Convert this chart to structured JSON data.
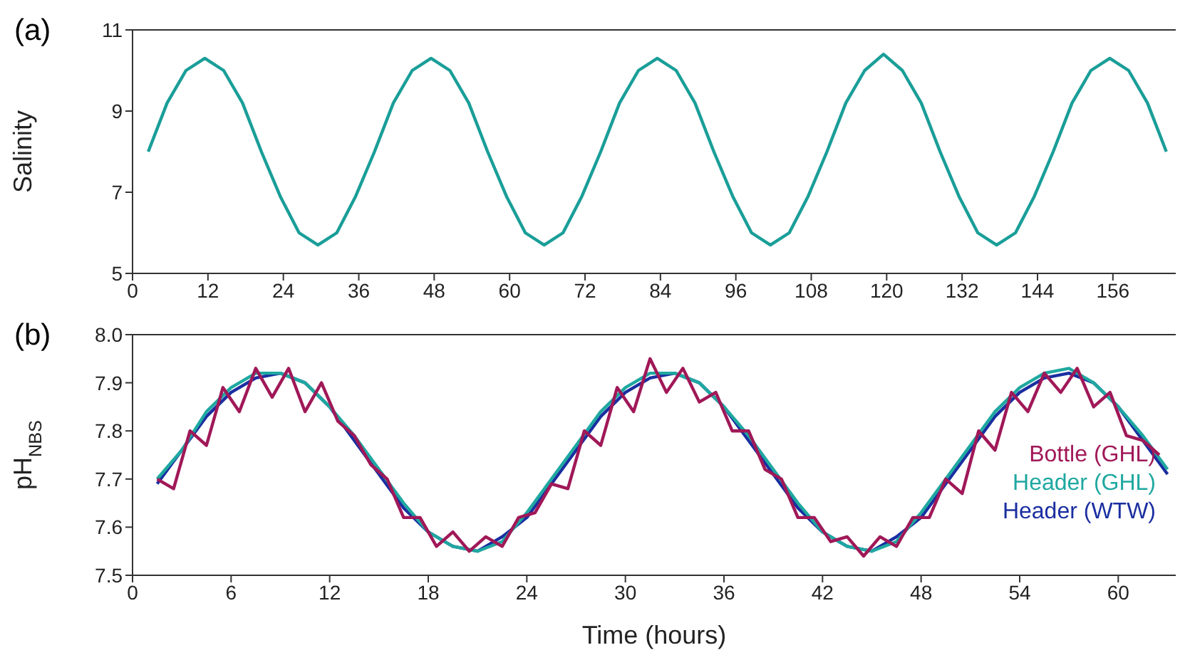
{
  "chart_data": [
    {
      "type": "line",
      "annotations": [
        "(a)"
      ],
      "ylabel": "Salinity",
      "xlim": [
        0,
        166
      ],
      "xticks": [
        0,
        12,
        24,
        36,
        48,
        60,
        72,
        84,
        96,
        108,
        120,
        132,
        144,
        156
      ],
      "ylim": [
        5,
        11
      ],
      "yticks": [
        5,
        7,
        9,
        11
      ],
      "legend": false,
      "marker": "none",
      "line_style": "solid",
      "series": [
        {
          "color": "#1a9e98",
          "x": [
            2.5,
            5.5,
            8.5,
            11.5,
            14.5,
            17.5,
            20.5,
            23.5,
            26.5,
            29.5,
            32.5,
            35.5,
            38.5,
            41.5,
            44.5,
            47.5,
            50.5,
            53.5,
            56.5,
            59.5,
            62.5,
            65.5,
            68.5,
            71.5,
            74.5,
            77.5,
            80.5,
            83.5,
            86.5,
            89.5,
            92.5,
            95.5,
            98.5,
            101.5,
            104.5,
            107.5,
            110.5,
            113.5,
            116.5,
            119.5,
            122.5,
            125.5,
            128.5,
            131.5,
            134.5,
            137.5,
            140.5,
            143.5,
            146.5,
            149.5,
            152.5,
            155.5,
            158.5,
            161.5,
            164.5
          ],
          "values": [
            8,
            9.2,
            10,
            10.3,
            10,
            9.2,
            8,
            6.9,
            6,
            5.7,
            6,
            6.9,
            8,
            9.2,
            10,
            10.3,
            10,
            9.2,
            8,
            6.9,
            6,
            5.7,
            6,
            6.9,
            8,
            9.2,
            10,
            10.3,
            10,
            9.2,
            8,
            6.9,
            6,
            5.7,
            6,
            6.9,
            8,
            9.2,
            10,
            10.4,
            10,
            9.2,
            8,
            6.9,
            6,
            5.7,
            6,
            6.9,
            8,
            9.2,
            10,
            10.3,
            10,
            9.2,
            8
          ]
        }
      ]
    },
    {
      "type": "line",
      "annotations": [
        "(b)"
      ],
      "xlabel": "Time (hours)",
      "ylabel": "pH$_{NBS}$",
      "xlim": [
        0,
        63.5
      ],
      "xticks": [
        0,
        6,
        12,
        18,
        24,
        30,
        36,
        42,
        48,
        54,
        60
      ],
      "ylim": [
        7.5,
        8
      ],
      "yticks": [
        7.5,
        7.6,
        7.7,
        7.8,
        7.9,
        {
          "value": 8,
          "label": "8.0"
        }
      ],
      "legend": "bottom right",
      "marker": "none",
      "line_style": "solid",
      "series": [
        {
          "name": "Bottle (GHL)",
          "color": "#a01858",
          "x": [
            1.5,
            2.5,
            3.5,
            4.5,
            5.5,
            6.5,
            7.5,
            8.5,
            9.5,
            10.5,
            11.5,
            12.5,
            13.5,
            14.5,
            15.5,
            16.5,
            17.5,
            18.5,
            19.5,
            20.5,
            21.5,
            22.5,
            23.5,
            24.5,
            25.5,
            26.5,
            27.5,
            28.5,
            29.5,
            30.5,
            31.5,
            32.5,
            33.5,
            34.5,
            35.5,
            36.5,
            37.5,
            38.5,
            39.5,
            40.5,
            41.5,
            42.5,
            43.5,
            44.5,
            45.5,
            46.5,
            47.5,
            48.5,
            49.5,
            50.5,
            51.5,
            52.5,
            53.5,
            54.5,
            55.5,
            56.5,
            57.5,
            58.5,
            59.5,
            60.5,
            61.5,
            62.5
          ],
          "values": [
            7.7,
            7.68,
            7.8,
            7.77,
            7.89,
            7.84,
            7.93,
            7.87,
            7.93,
            7.84,
            7.9,
            7.82,
            7.79,
            7.73,
            7.7,
            7.62,
            7.62,
            7.56,
            7.59,
            7.55,
            7.58,
            7.56,
            7.62,
            7.63,
            7.69,
            7.68,
            7.8,
            7.77,
            7.89,
            7.84,
            7.95,
            7.88,
            7.93,
            7.86,
            7.88,
            7.8,
            7.8,
            7.72,
            7.7,
            7.62,
            7.62,
            7.57,
            7.58,
            7.54,
            7.58,
            7.56,
            7.62,
            7.62,
            7.7,
            7.67,
            7.8,
            7.76,
            7.88,
            7.84,
            7.92,
            7.88,
            7.93,
            7.85,
            7.88,
            7.79,
            7.78,
            7.75
          ]
        },
        {
          "name": "Header (GHL)",
          "color": "#1fa8a0",
          "x": [
            1.5,
            3,
            4.5,
            6,
            7.5,
            9,
            10.5,
            12,
            13.5,
            15,
            16.5,
            18,
            19.5,
            21,
            22.5,
            24,
            25.5,
            27,
            28.5,
            30,
            31.5,
            33,
            34.5,
            36,
            37.5,
            39,
            40.5,
            42,
            43.5,
            45,
            46.5,
            48,
            49.5,
            51,
            52.5,
            54,
            55.5,
            57,
            58.5,
            60,
            61.5,
            63
          ],
          "values": [
            7.7,
            7.76,
            7.84,
            7.89,
            7.92,
            7.92,
            7.9,
            7.85,
            7.79,
            7.72,
            7.65,
            7.59,
            7.56,
            7.55,
            7.57,
            7.63,
            7.7,
            7.77,
            7.84,
            7.89,
            7.92,
            7.92,
            7.9,
            7.85,
            7.79,
            7.72,
            7.65,
            7.59,
            7.56,
            7.55,
            7.57,
            7.63,
            7.7,
            7.77,
            7.84,
            7.89,
            7.92,
            7.93,
            7.9,
            7.85,
            7.79,
            7.72
          ]
        },
        {
          "name": "Header (WTW)",
          "color": "#1a2ea0",
          "x": [
            1.5,
            3,
            4.5,
            6,
            7.5,
            9,
            10.5,
            12,
            13.5,
            15,
            16.5,
            18,
            19.5,
            21,
            22.5,
            24,
            25.5,
            27,
            28.5,
            30,
            31.5,
            33,
            34.5,
            36,
            37.5,
            39,
            40.5,
            42,
            43.5,
            45,
            46.5,
            48,
            49.5,
            51,
            52.5,
            54,
            55.5,
            57,
            58.5,
            60,
            61.5,
            63
          ],
          "values": [
            7.69,
            7.76,
            7.83,
            7.88,
            7.91,
            7.92,
            7.9,
            7.85,
            7.78,
            7.71,
            7.64,
            7.59,
            7.56,
            7.55,
            7.58,
            7.62,
            7.69,
            7.76,
            7.83,
            7.88,
            7.91,
            7.92,
            7.9,
            7.85,
            7.78,
            7.71,
            7.64,
            7.59,
            7.56,
            7.55,
            7.58,
            7.62,
            7.69,
            7.76,
            7.83,
            7.88,
            7.91,
            7.92,
            7.9,
            7.85,
            7.78,
            7.71
          ]
        }
      ]
    }
  ]
}
